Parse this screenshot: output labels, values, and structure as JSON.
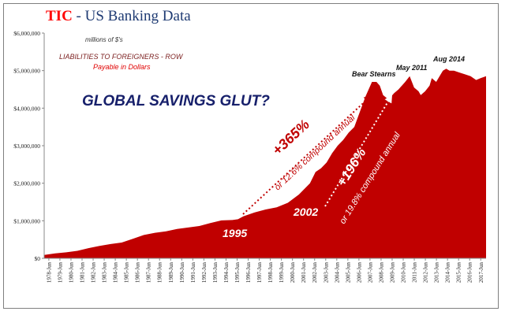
{
  "colors": {
    "fill": "#c00000",
    "title_brand": "#ff0000",
    "title_rest": "#1f3b73",
    "glut_text": "#17206b",
    "subtitle_dark": "#7b1f1f",
    "subtitle_red": "#e00000",
    "axis_text": "#222222"
  },
  "chart_data": {
    "type": "area",
    "title_brand": "TIC",
    "title_rest": " - US Banking Data",
    "units_note": "millions of $'s",
    "subtitle": "LIABILITIES TO FOREIGNERS  - ROW",
    "subtitle2": "Payable  in Dollars",
    "annotation_glut": "GLOBAL SAVINGS GLUT?",
    "ylim": [
      0,
      6000000
    ],
    "y_ticks": [
      0,
      1000000,
      2000000,
      3000000,
      4000000,
      5000000,
      6000000
    ],
    "y_tick_labels": [
      "$0",
      "$1,000,000",
      "$2,000,000",
      "$3,000,000",
      "$4,000,000",
      "$5,000,000",
      "$6,000,000"
    ],
    "x_tick_labels": [
      "1978-Jun",
      "1979-Jun",
      "1980-Jun",
      "1981-Jun",
      "1982-Jun",
      "1983-Jun",
      "1984-Jun",
      "1985-Jun",
      "1986-Jun",
      "1987-Jun",
      "1988-Jun",
      "1989-Jun",
      "1990-Jun",
      "1991-Jun",
      "1992-Jun",
      "1993-Jun",
      "1994-Jun",
      "1995-Jun",
      "1996-Jun",
      "1997-Jun",
      "1998-Jun",
      "1999-Jun",
      "2000-Jun",
      "2001-Jun",
      "2002-Jun",
      "2003-Jun",
      "2004-Jun",
      "2005-Jun",
      "2006-Jun",
      "2007-Jun",
      "2008-Jun",
      "2009-Jun",
      "2010-Jun",
      "2011-Jun",
      "2012-Jun",
      "2013-Jun",
      "2014-Jun",
      "2015-Jun",
      "2016-Jun",
      "2017-Jun"
    ],
    "x_range": [
      1978.0,
      2017.9
    ],
    "series": [
      {
        "x": [
          1978.0,
          1979.0,
          1980.0,
          1981.0,
          1982.0,
          1983.0,
          1984.0,
          1985.0,
          1986.0,
          1987.0,
          1988.0,
          1989.0,
          1990.0,
          1991.0,
          1992.0,
          1993.0,
          1994.0,
          1995.0,
          1995.5,
          1996.0,
          1997.0,
          1998.0,
          1999.0,
          2000.0,
          2001.0,
          2002.0,
          2002.5,
          2003.0,
          2003.5,
          2004.0,
          2004.5,
          2005.0,
          2005.5,
          2006.0,
          2006.5,
          2007.0,
          2007.3,
          2007.6,
          2008.0,
          2008.3,
          2008.6,
          2009.0,
          2009.3,
          2009.6,
          2010.0,
          2010.3,
          2010.6,
          2011.0,
          2011.4,
          2011.8,
          2012.0,
          2012.4,
          2012.8,
          2013.0,
          2013.4,
          2013.8,
          2014.0,
          2014.3,
          2014.6,
          2015.0,
          2015.5,
          2016.0,
          2016.5,
          2017.0,
          2017.4,
          2017.9
        ],
        "values": [
          90000,
          130000,
          160000,
          200000,
          270000,
          330000,
          380000,
          420000,
          520000,
          620000,
          680000,
          720000,
          780000,
          820000,
          860000,
          940000,
          1010000,
          1020000,
          1040000,
          1120000,
          1220000,
          1300000,
          1360000,
          1480000,
          1700000,
          2000000,
          2300000,
          2400000,
          2550000,
          2800000,
          3000000,
          3150000,
          3350000,
          3500000,
          3900000,
          4300000,
          4500000,
          4700000,
          4700000,
          4600000,
          4350000,
          4250000,
          4300000,
          4400000,
          4500000,
          4600000,
          4700000,
          4850000,
          4550000,
          4450000,
          4350000,
          4450000,
          4600000,
          4800000,
          4700000,
          4900000,
          5000000,
          5050000,
          5000000,
          5000000,
          4950000,
          4900000,
          4850000,
          4750000,
          4800000,
          4850000
        ]
      }
    ],
    "annotations": {
      "year_1995": "1995",
      "year_2002": "2002",
      "bear_stearns": "Bear Stearns",
      "may_2011": "May 2011",
      "aug_2014": "Aug 2014",
      "pct_365": "+365%",
      "pct_365_sub": "or 12.6% compound annual",
      "pct_196": "+196%",
      "pct_196_sub": "or 19.8% compound annual"
    },
    "grid": false,
    "legend": "none"
  }
}
